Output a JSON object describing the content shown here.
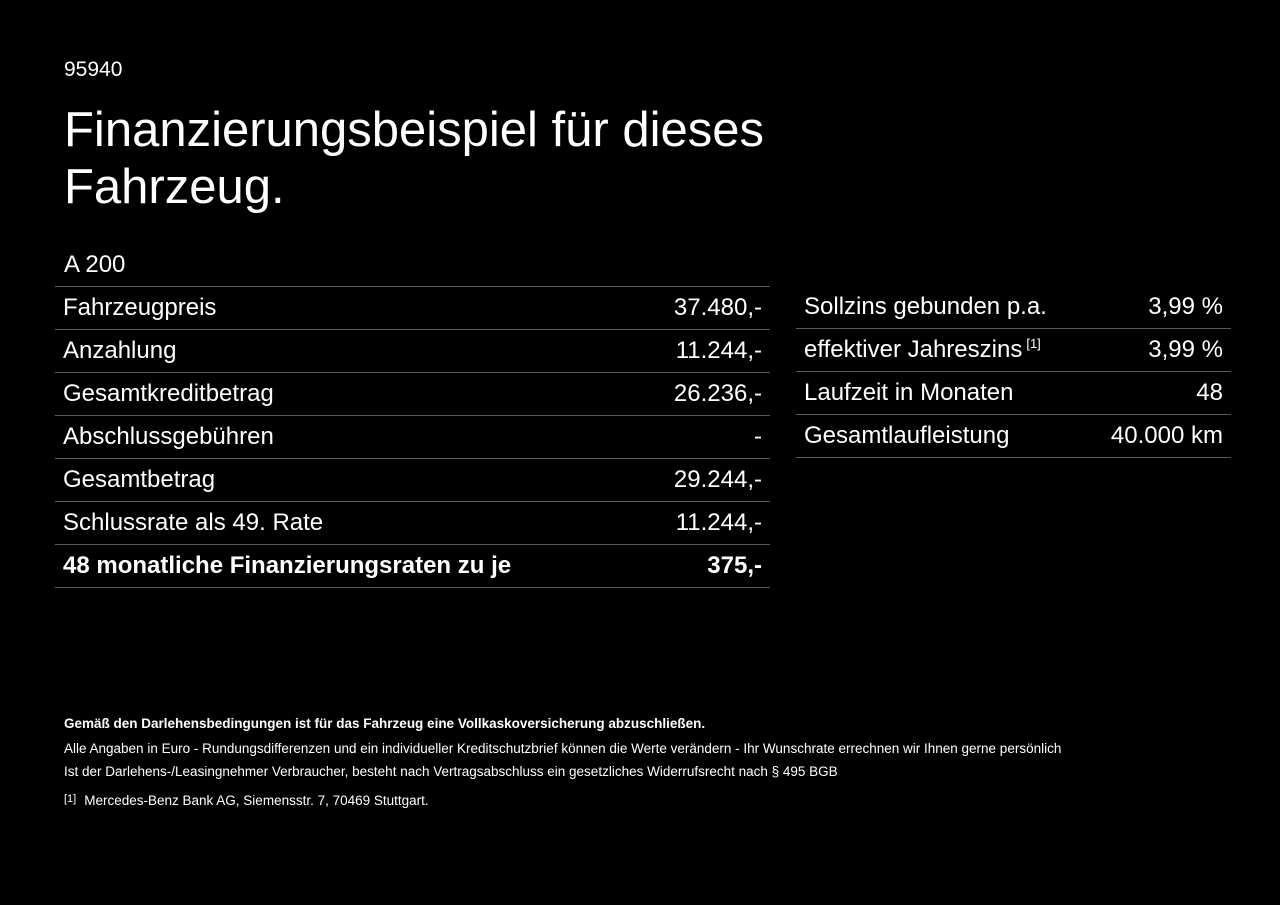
{
  "code": "95940",
  "title": "Finanzierungsbeispiel für dieses Fahrzeug.",
  "model": "A 200",
  "left_rows": [
    {
      "label": "Fahrzeugpreis",
      "value": "37.480,-"
    },
    {
      "label": "Anzahlung",
      "value": "11.244,-"
    },
    {
      "label": "Gesamtkreditbetrag",
      "value": "26.236,-"
    },
    {
      "label": "Abschlussgebühren",
      "value": "-"
    },
    {
      "label": "Gesamtbetrag",
      "value": "29.244,-"
    },
    {
      "label": "Schlussrate als 49. Rate",
      "value": "11.244,-"
    },
    {
      "label": "48 monatliche Finanzierungsraten zu je",
      "value": "375,-"
    }
  ],
  "right_rows": [
    {
      "label": "Sollzins gebunden p.a.",
      "value": "3,99 %"
    },
    {
      "label": "effektiver Jahreszins",
      "sup": "[1]",
      "value": "3,99 %"
    },
    {
      "label": "Laufzeit in Monaten",
      "value": "48"
    },
    {
      "label": "Gesamtlaufleistung",
      "value": "40.000 km"
    }
  ],
  "footnotes": {
    "insurance": "Gemäß den Darlehensbedingungen ist für das Fahrzeug eine Vollkaskoversicherung abzuschließen.",
    "euro": "Alle Angaben in Euro - Rundungsdifferenzen und ein individueller Kreditschutzbrief können die Werte verändern - Ihr Wunschrate errechnen wir Ihnen gerne persönlich",
    "withdrawal": "Ist der Darlehens-/Leasingnehmer Verbraucher, besteht nach Vertragsabschluss ein gesetzliches Widerrufsrecht nach § 495 BGB",
    "marker": "[1]",
    "bank": "Mercedes-Benz Bank AG, Siemensstr. 7, 70469 Stuttgart."
  }
}
